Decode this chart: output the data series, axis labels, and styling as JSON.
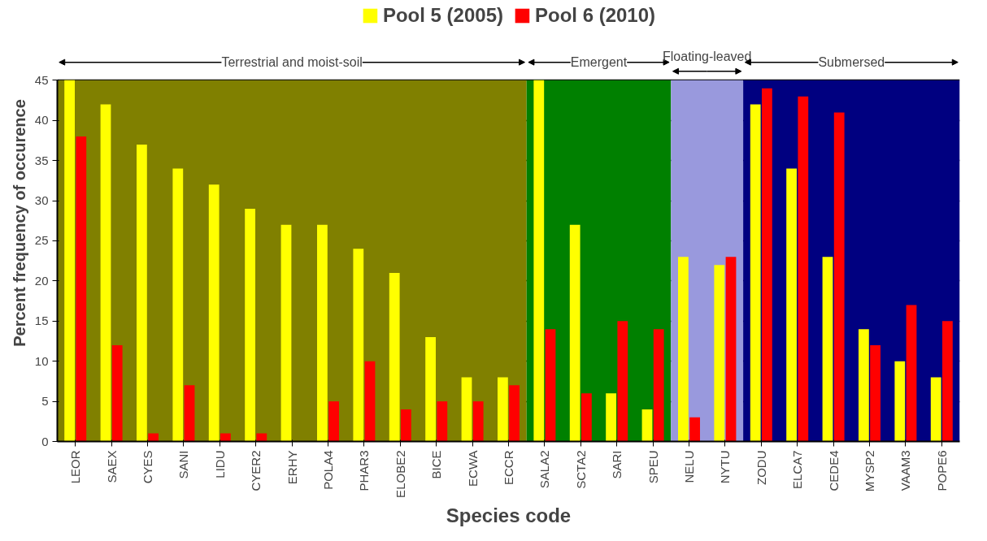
{
  "chart_data": {
    "type": "bar",
    "xlabel": "Species code",
    "ylabel": "Percent frequency of occurence",
    "categories": [
      "LEOR",
      "SAEX",
      "CYES",
      "SANI",
      "LIDU",
      "CYER2",
      "ERHY",
      "POLA4",
      "PHAR3",
      "ELOBE2",
      "BICE",
      "ECWA",
      "ECCR",
      "SALA2",
      "SCTA2",
      "SARI",
      "SPEU",
      "NELU",
      "NYTU",
      "ZODU",
      "ELCA7",
      "CEDE4",
      "MYSP2",
      "VAAM3",
      "POPE6"
    ],
    "series": [
      {
        "name": "Pool 5 (2005)",
        "color": "#ffff00",
        "values": [
          45,
          42,
          37,
          34,
          32,
          29,
          27,
          27,
          24,
          21,
          13,
          8,
          8,
          45,
          27,
          6,
          4,
          23,
          22,
          42,
          34,
          23,
          14,
          10,
          8
        ]
      },
      {
        "name": "Pool 6 (2010)",
        "color": "#ff0000",
        "values": [
          38,
          12,
          1,
          7,
          1,
          1,
          0,
          5,
          10,
          4,
          5,
          5,
          7,
          14,
          6,
          15,
          14,
          3,
          23,
          44,
          43,
          41,
          12,
          17,
          15
        ]
      }
    ],
    "bands": [
      {
        "axis": "x",
        "from": "LEOR",
        "to": "ECCR",
        "label": "Terrestrial and moist-soil",
        "color": "#808000"
      },
      {
        "axis": "x",
        "from": "SALA2",
        "to": "SPEU",
        "label": "Emergent",
        "color": "#008000"
      },
      {
        "axis": "x",
        "from": "NELU",
        "to": "NYTU",
        "label": "Floating-leaved",
        "color": "#9999dd"
      },
      {
        "axis": "x",
        "from": "ZODU",
        "to": "POPE6",
        "label": "Submersed",
        "color": "#000080"
      }
    ],
    "ylim": [
      0,
      45
    ],
    "yticks": [
      0,
      5,
      10,
      15,
      20,
      25,
      30,
      35,
      40,
      45
    ],
    "grid": "y",
    "legend": "top"
  }
}
